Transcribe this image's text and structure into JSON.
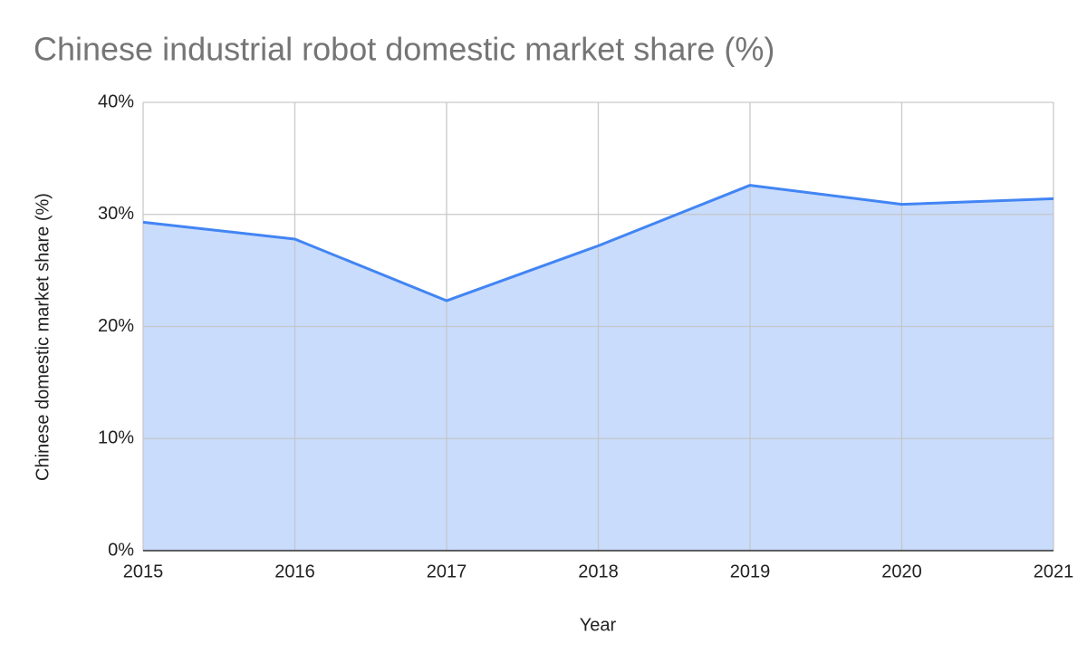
{
  "chart_data": {
    "type": "area",
    "title": "Chinese industrial robot domestic market share (%)",
    "x_label": "Year",
    "y_label": "Chinese domestic market share (%)",
    "x": [
      2015,
      2016,
      2017,
      2018,
      2019,
      2020,
      2021
    ],
    "series": [
      {
        "name": "Chinese domestic market share (%)",
        "color": "#4285f4",
        "fill": "#c6dafc",
        "values": [
          29.3,
          27.8,
          22.3,
          27.2,
          32.6,
          30.9,
          31.4
        ]
      }
    ],
    "xlim": [
      2015,
      2021
    ],
    "xticks": [
      2015,
      2016,
      2017,
      2018,
      2019,
      2020,
      2021
    ],
    "ylim": [
      0,
      40
    ],
    "yticks": [
      {
        "value": 0,
        "label": "0%"
      },
      {
        "value": 10,
        "label": "10%"
      },
      {
        "value": 20,
        "label": "20%"
      },
      {
        "value": 30,
        "label": "30%"
      },
      {
        "value": 40,
        "label": "40%"
      }
    ],
    "grid": true
  }
}
